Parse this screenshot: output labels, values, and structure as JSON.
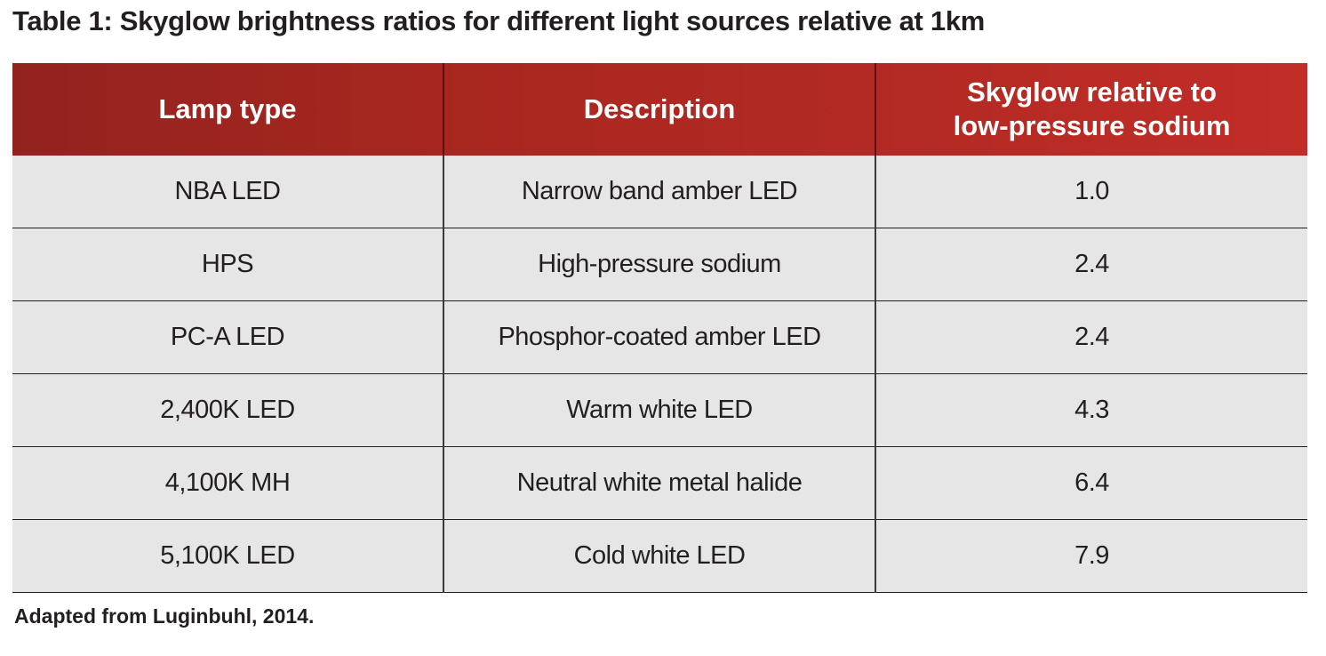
{
  "title": "Table 1: Skyglow brightness ratios for different light sources relative at 1km",
  "table": {
    "headers": {
      "lamp_type": "Lamp type",
      "description": "Description",
      "skyglow_line1": "Skyglow relative to",
      "skyglow_line2": "low-pressure sodium"
    },
    "rows": [
      {
        "lamp_type": "NBA LED",
        "description": "Narrow band amber LED",
        "skyglow": "1.0"
      },
      {
        "lamp_type": "HPS",
        "description": "High-pressure sodium",
        "skyglow": "2.4"
      },
      {
        "lamp_type": "PC-A LED",
        "description": "Phosphor-coated amber LED",
        "skyglow": "2.4"
      },
      {
        "lamp_type": "2,400K LED",
        "description": "Warm white LED",
        "skyglow": "4.3"
      },
      {
        "lamp_type": "4,100K MH",
        "description": "Neutral white metal halide",
        "skyglow": "6.4"
      },
      {
        "lamp_type": "5,100K LED",
        "description": "Cold white LED",
        "skyglow": "7.9"
      }
    ]
  },
  "source_note": "Adapted from Luginbuhl, 2014.",
  "colors": {
    "header_red": "#b42a24",
    "row_gray": "#e6e6e7",
    "text_dark": "#231f20"
  }
}
